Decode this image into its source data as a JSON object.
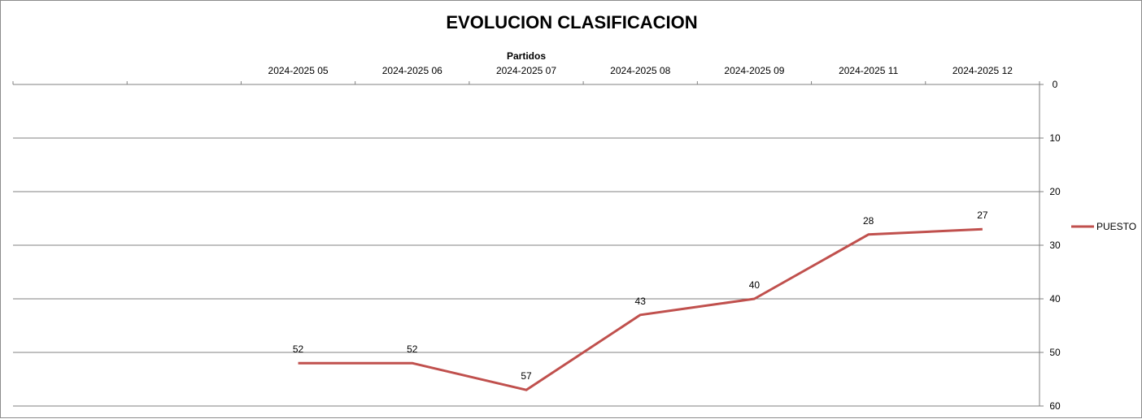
{
  "chart_data": {
    "type": "line",
    "title": "EVOLUCION CLASIFICACION",
    "xlabel": "Partidos",
    "ylabel": "",
    "categories": [
      "",
      "",
      "2024-2025 05",
      "2024-2025 06",
      "2024-2025 07",
      "2024-2025 08",
      "2024-2025 09",
      "2024-2025 11",
      "2024-2025 12"
    ],
    "series": [
      {
        "name": "PUESTO",
        "values": [
          null,
          null,
          52,
          52,
          57,
          43,
          40,
          28,
          27
        ],
        "color": "#c0504d"
      }
    ],
    "ylim": [
      0,
      60
    ],
    "y_ticks": [
      0,
      10,
      20,
      30,
      40,
      50,
      60
    ],
    "y_inverted": true,
    "y_axis_position": "right",
    "x_axis_position": "top",
    "grid": true,
    "legend_position": "right"
  }
}
